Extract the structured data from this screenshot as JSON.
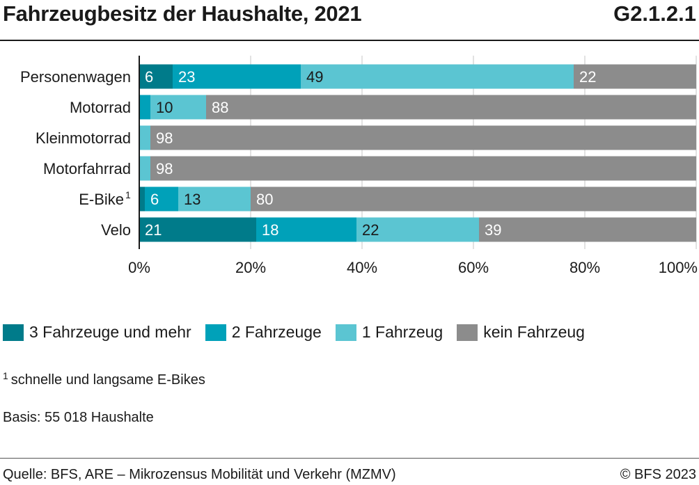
{
  "header": {
    "title": "Fahrzeugbesitz der Haushalte, 2021",
    "chart_id": "G2.1.2.1"
  },
  "colors": {
    "series": [
      "#007b8a",
      "#00a1b9",
      "#5bc5d2",
      "#8c8c8c"
    ],
    "grid": "#d9d9d9",
    "axis": "#1a1a1a"
  },
  "chart_data": {
    "type": "bar",
    "orientation": "horizontal",
    "stacked": true,
    "categories": [
      "Personenwagen",
      "Motorrad",
      "Kleinmotorrad",
      "Motorfahrrad",
      "E-Bike",
      "Velo"
    ],
    "category_footnotes": [
      "",
      "",
      "",
      "",
      "1",
      ""
    ],
    "series": [
      {
        "name": "3 Fahrzeuge und mehr",
        "values": [
          6,
          0,
          0,
          0,
          1,
          21
        ],
        "labels": [
          "6",
          "",
          "",
          "",
          "",
          "21"
        ]
      },
      {
        "name": "2 Fahrzeuge",
        "values": [
          23,
          2,
          0,
          0,
          6,
          18
        ],
        "labels": [
          "23",
          "",
          "",
          "",
          "6",
          "18"
        ]
      },
      {
        "name": "1 Fahrzeug",
        "values": [
          49,
          10,
          2,
          2,
          13,
          22
        ],
        "labels": [
          "49",
          "10",
          "",
          "",
          "13",
          "22"
        ]
      },
      {
        "name": "kein Fahrzeug",
        "values": [
          22,
          88,
          98,
          98,
          80,
          39
        ],
        "labels": [
          "22",
          "88",
          "98",
          "98",
          "80",
          "39"
        ]
      }
    ],
    "xlim": [
      0,
      100
    ],
    "xticks": [
      "0%",
      "20%",
      "40%",
      "60%",
      "80%",
      "100%"
    ],
    "grid": true,
    "legend_position": "bottom"
  },
  "notes": {
    "footnote_marker": "1",
    "footnote_text": "schnelle und langsame E-Bikes",
    "basis": "Basis: 55 018 Haushalte"
  },
  "footer": {
    "source": "Quelle: BFS, ARE – Mikrozensus Mobilität und Verkehr (MZMV)",
    "copyright": "© BFS 2023"
  }
}
